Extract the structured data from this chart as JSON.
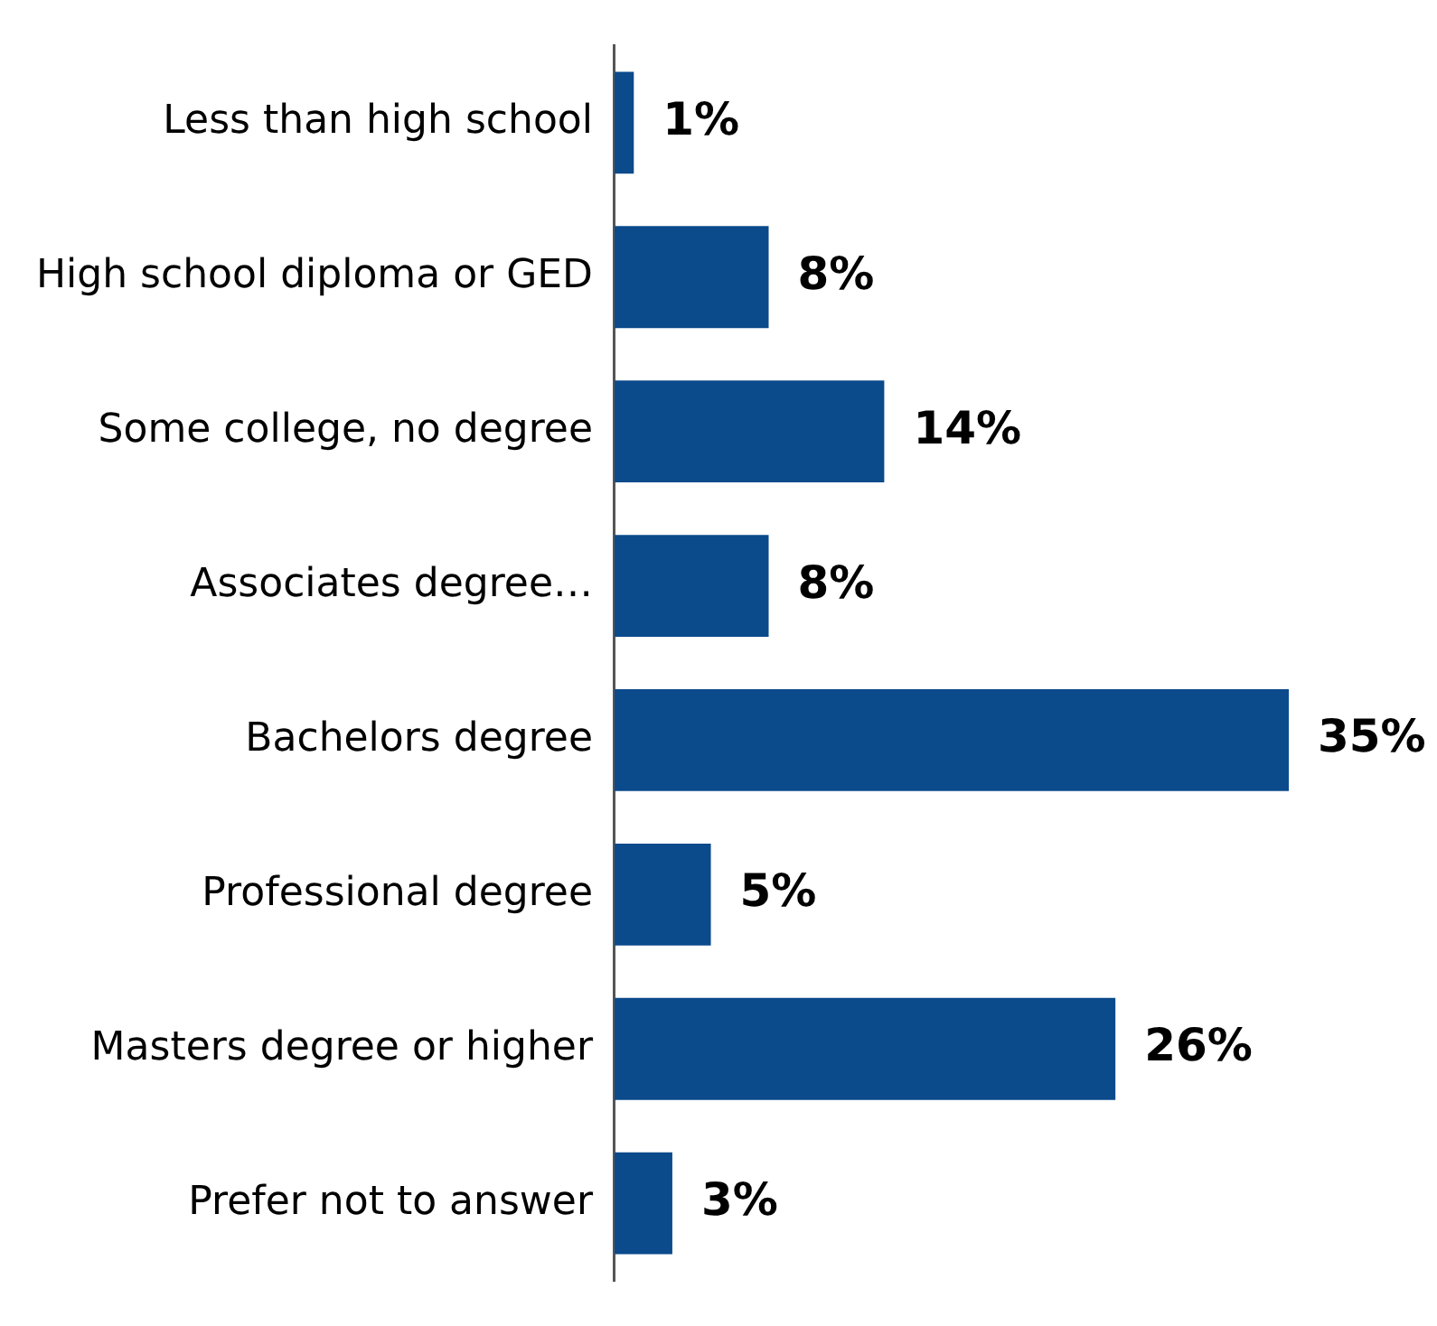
{
  "chart_data": {
    "type": "bar",
    "orientation": "horizontal",
    "categories": [
      "Less than high school",
      "High school diploma or GED",
      "Some college, no degree",
      "Associates degree…",
      "Bachelors degree",
      "Professional degree",
      "Masters degree or higher",
      "Prefer not to answer"
    ],
    "values": [
      1,
      8,
      14,
      8,
      35,
      5,
      26,
      3
    ],
    "value_labels": [
      "1%",
      "8%",
      "14%",
      "8%",
      "35%",
      "5%",
      "26%",
      "3%"
    ],
    "color": "#0b4a8b",
    "tick_labels": "y",
    "legend": false
  }
}
